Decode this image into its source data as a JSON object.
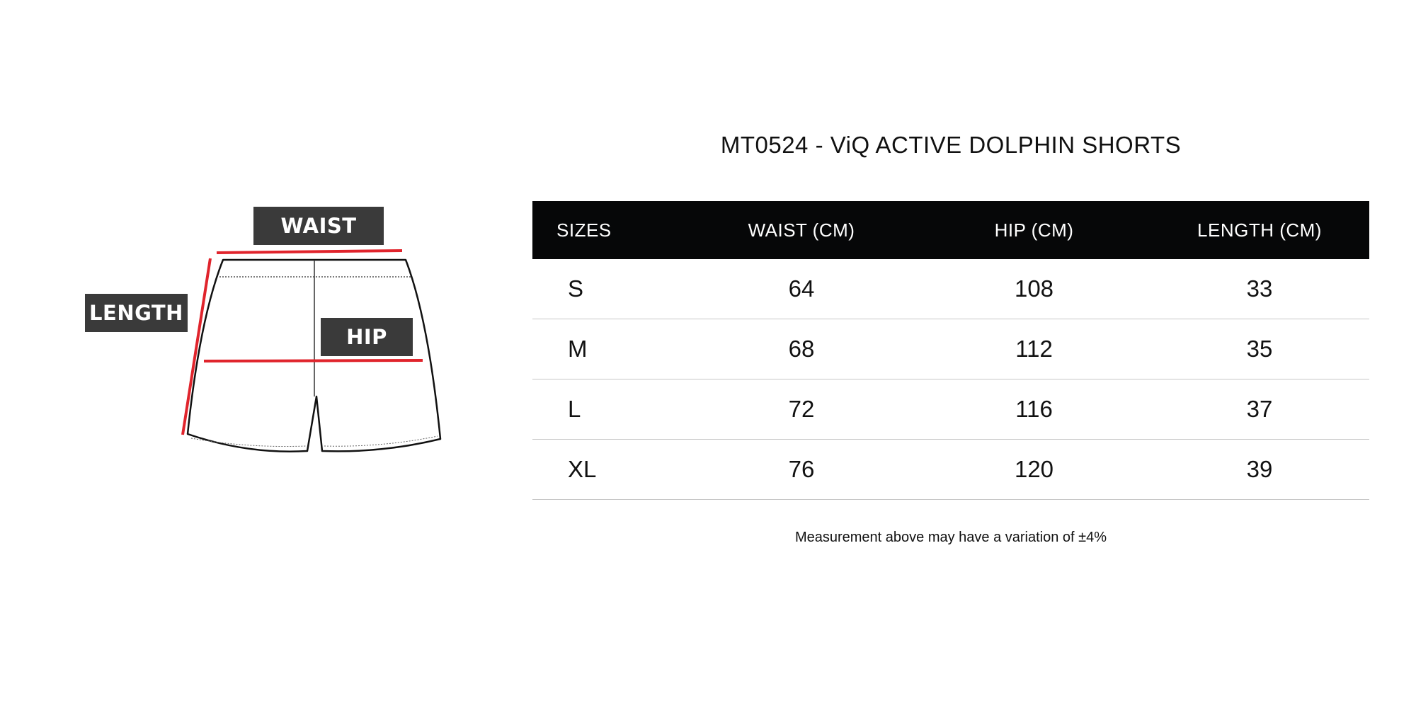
{
  "diagram": {
    "labels": {
      "waist": "WAIST",
      "length": "LENGTH",
      "hip": "HIP"
    },
    "measure_line_color": "#e0242c",
    "label_bg_color": "#3a3a3a"
  },
  "title": "MT0524 - ViQ ACTIVE DOLPHIN SHORTS",
  "table": {
    "headers": [
      "SIZES",
      "WAIST (CM)",
      "HIP (CM)",
      "LENGTH (CM)"
    ],
    "rows": [
      [
        "S",
        "64",
        "108",
        "33"
      ],
      [
        "M",
        "68",
        "112",
        "35"
      ],
      [
        "L",
        "72",
        "116",
        "37"
      ],
      [
        "XL",
        "76",
        "120",
        "39"
      ]
    ],
    "header_bg_color": "#060708"
  },
  "note": "Measurement above may have a variation of ±4%"
}
